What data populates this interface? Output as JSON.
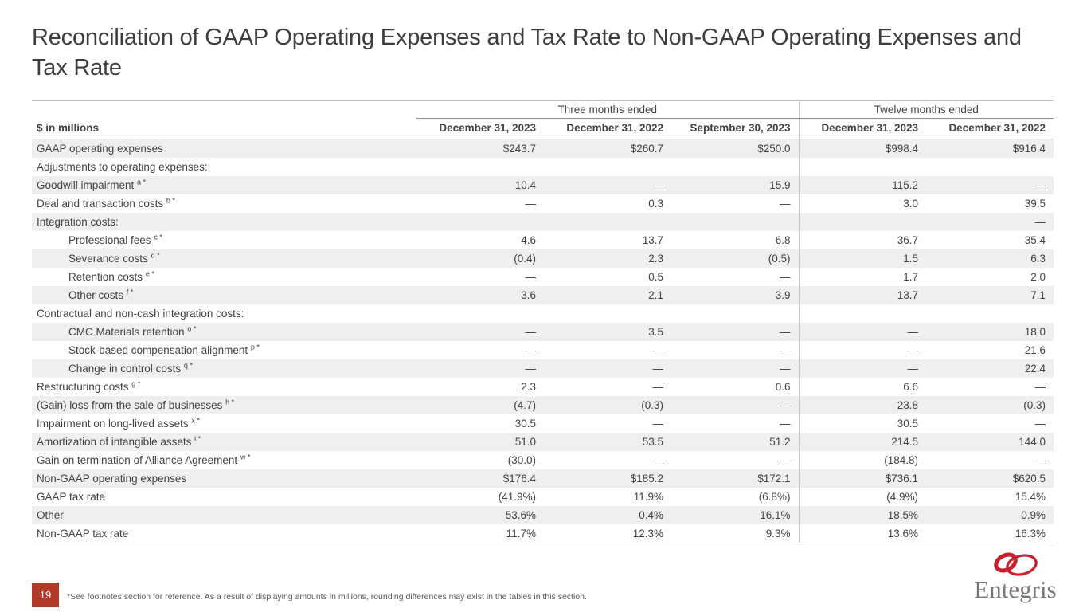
{
  "slide": {
    "title": "Reconciliation of GAAP Operating Expenses and Tax Rate to Non-GAAP Operating Expenses and Tax Rate",
    "page_number": "19",
    "footnote": "*See footnotes section for reference. As a result of displaying amounts in millions, rounding differences may exist in the tables in this section.",
    "logo_text": "Entegris"
  },
  "colors": {
    "accent_red": "#b23a28",
    "logo_red": "#c5202c",
    "logo_gray": "#75767a",
    "stripe_gray": "#efefef",
    "text_gray": "#404040"
  },
  "table": {
    "unit_label": "$ in millions",
    "group_headers": [
      {
        "label": "Three months ended",
        "colspan": 3
      },
      {
        "label": "Twelve months ended",
        "colspan": 2
      }
    ],
    "column_headers": [
      "December 31, 2023",
      "December 31, 2022",
      "September 30, 2023",
      "December 31, 2023",
      "December 31, 2022"
    ],
    "rows": [
      {
        "label": "GAAP operating expenses",
        "sup": "",
        "indent": 0,
        "values": [
          "$243.7",
          "$260.7",
          "$250.0",
          "$998.4",
          "$916.4"
        ]
      },
      {
        "label": "Adjustments to operating expenses:",
        "sup": "",
        "indent": 0,
        "values": [
          "",
          "",
          "",
          "",
          ""
        ]
      },
      {
        "label": "Goodwill impairment",
        "sup": "a *",
        "indent": 0,
        "values": [
          "10.4",
          "—",
          "15.9",
          "115.2",
          "—"
        ]
      },
      {
        "label": "Deal and transaction costs",
        "sup": "b *",
        "indent": 0,
        "values": [
          "—",
          "0.3",
          "—",
          "3.0",
          "39.5"
        ]
      },
      {
        "label": "Integration costs:",
        "sup": "",
        "indent": 0,
        "values": [
          "",
          "",
          "",
          "",
          "—"
        ]
      },
      {
        "label": "Professional fees",
        "sup": "c *",
        "indent": 1,
        "values": [
          "4.6",
          "13.7",
          "6.8",
          "36.7",
          "35.4"
        ]
      },
      {
        "label": "Severance costs",
        "sup": "d *",
        "indent": 1,
        "values": [
          "(0.4)",
          "2.3",
          "(0.5)",
          "1.5",
          "6.3"
        ]
      },
      {
        "label": "Retention costs",
        "sup": "e *",
        "indent": 1,
        "values": [
          "—",
          "0.5",
          "—",
          "1.7",
          "2.0"
        ]
      },
      {
        "label": "Other costs",
        "sup": "f *",
        "indent": 1,
        "values": [
          "3.6",
          "2.1",
          "3.9",
          "13.7",
          "7.1"
        ]
      },
      {
        "label": "Contractual and non-cash integration costs:",
        "sup": "",
        "indent": 0,
        "values": [
          "",
          "",
          "",
          "",
          ""
        ]
      },
      {
        "label": "CMC Materials retention",
        "sup": "o *",
        "indent": 1,
        "values": [
          "—",
          "3.5",
          "—",
          "—",
          "18.0"
        ]
      },
      {
        "label": "Stock-based compensation alignment",
        "sup": "p *",
        "indent": 1,
        "values": [
          "—",
          "—",
          "—",
          "—",
          "21.6"
        ]
      },
      {
        "label": "Change in control costs",
        "sup": "q *",
        "indent": 1,
        "values": [
          "—",
          "—",
          "—",
          "—",
          "22.4"
        ]
      },
      {
        "label": "Restructuring costs",
        "sup": "g *",
        "indent": 0,
        "values": [
          "2.3",
          "—",
          "0.6",
          "6.6",
          "—"
        ]
      },
      {
        "label": "(Gain) loss from the sale of businesses",
        "sup": "h *",
        "indent": 0,
        "values": [
          "(4.7)",
          "(0.3)",
          "—",
          "23.8",
          "(0.3)"
        ]
      },
      {
        "label": "Impairment on long-lived assets",
        "sup": "x *",
        "indent": 0,
        "values": [
          "30.5",
          "—",
          "—",
          "30.5",
          "—"
        ]
      },
      {
        "label": "Amortization of intangible assets",
        "sup": "i *",
        "indent": 0,
        "values": [
          "51.0",
          "53.5",
          "51.2",
          "214.5",
          "144.0"
        ]
      },
      {
        "label": "Gain on termination of Alliance Agreement",
        "sup": "w *",
        "indent": 0,
        "values": [
          "(30.0)",
          "—",
          "—",
          "(184.8)",
          "—"
        ]
      },
      {
        "label": "Non-GAAP operating expenses",
        "sup": "",
        "indent": 0,
        "values": [
          "$176.4",
          "$185.2",
          "$172.1",
          "$736.1",
          "$620.5"
        ]
      },
      {
        "label": "GAAP tax rate",
        "sup": "",
        "indent": 0,
        "values": [
          "(41.9%)",
          "11.9%",
          "(6.8%)",
          "(4.9%)",
          "15.4%"
        ]
      },
      {
        "label": "Other",
        "sup": "",
        "indent": 0,
        "values": [
          "53.6%",
          "0.4%",
          "16.1%",
          "18.5%",
          "0.9%"
        ]
      },
      {
        "label": "Non-GAAP tax rate",
        "sup": "",
        "indent": 0,
        "values": [
          "11.7%",
          "12.3%",
          "9.3%",
          "13.6%",
          "16.3%"
        ]
      }
    ]
  }
}
